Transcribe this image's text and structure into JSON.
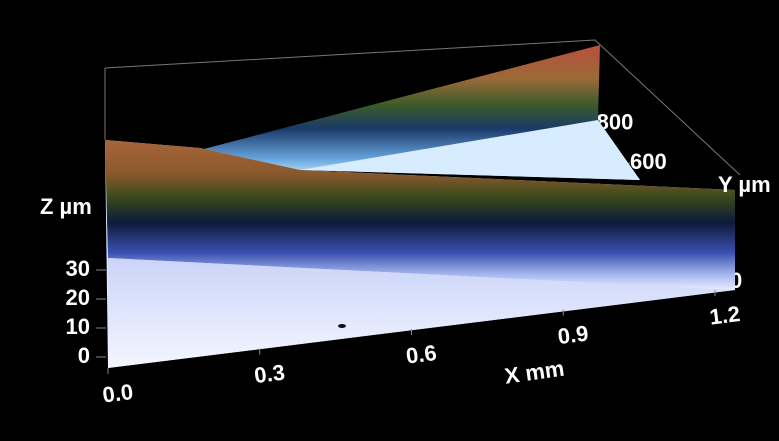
{
  "chart_data": {
    "type": "surface3d",
    "x_label": "X mm",
    "y_label": "Y µm",
    "z_label": "Z µm",
    "xlim": [
      0,
      1.2
    ],
    "xticks": [
      {
        "value": 0,
        "label": "0.0"
      },
      0.3,
      0.6,
      0.9,
      1.2
    ],
    "ylim": [
      0,
      850
    ],
    "yticks": [
      0,
      600,
      800
    ],
    "zlim": [
      0,
      35
    ],
    "zticks": [
      0,
      10,
      20,
      30
    ]
  }
}
